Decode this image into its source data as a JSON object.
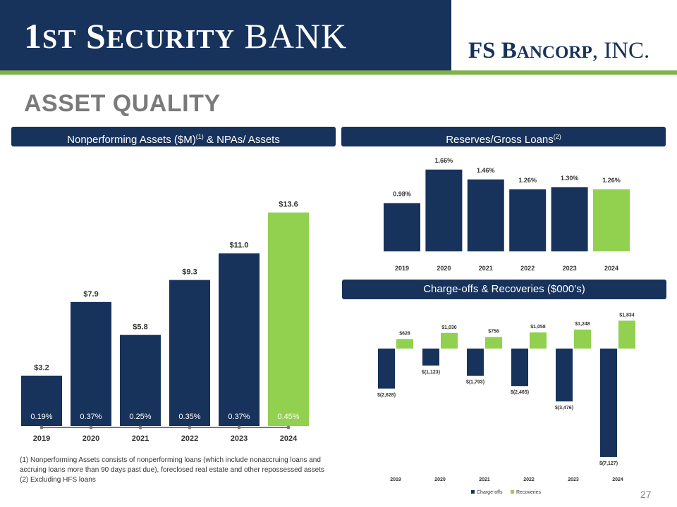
{
  "header": {
    "left_logo": {
      "big1": "1",
      "small1": "ST",
      "big2": " S",
      "small2": "ECURITY",
      "rest": " BANK"
    },
    "right_logo": {
      "big1": "FS B",
      "small1": "ANCORP",
      "rest": ", INC."
    }
  },
  "title": "ASSET QUALITY",
  "panels": {
    "npa": {
      "title": "Nonperforming Assets ($M)",
      "sup": "(1)",
      "title_suffix": " & NPAs/ Assets"
    },
    "reserves": {
      "title": "Reserves/Gross Loans",
      "sup": "(2)"
    },
    "chargeoffs": {
      "title": "Charge-offs & Recoveries ($000’s)"
    }
  },
  "colors": {
    "navy": "#17325b",
    "green": "#92d050",
    "gray_title": "#7a7a7a"
  },
  "chart_data": [
    {
      "type": "bar",
      "categories": [
        "2019",
        "2020",
        "2021",
        "2022",
        "2023",
        "2024"
      ],
      "values": [
        3.2,
        7.9,
        5.8,
        9.3,
        11.0,
        13.6
      ],
      "value_labels": [
        "$3.2",
        "$7.9",
        "$5.8",
        "$9.3",
        "$11.0",
        "$13.6"
      ],
      "ratio_labels": [
        "0.19%",
        "0.37%",
        "0.25%",
        "0.35%",
        "0.37%",
        "0.45%"
      ],
      "ratios": [
        0.19,
        0.37,
        0.25,
        0.35,
        0.37,
        0.45
      ],
      "highlight_index": 5
    },
    {
      "type": "bar",
      "categories": [
        "2019",
        "2020",
        "2021",
        "2022",
        "2023",
        "2024"
      ],
      "values": [
        0.98,
        1.66,
        1.46,
        1.26,
        1.3,
        1.26
      ],
      "value_labels": [
        "0.98%",
        "1.66%",
        "1.46%",
        "1.26%",
        "1.30%",
        "1.26%"
      ],
      "highlight_index": 5
    },
    {
      "type": "bar",
      "categories": [
        "2019",
        "2020",
        "2021",
        "2022",
        "2023",
        "2024"
      ],
      "series": [
        {
          "name": "Charge-offs",
          "values": [
            -2628,
            -1123,
            -1793,
            -2465,
            -3476,
            -7127
          ],
          "labels": [
            "$(2,628)",
            "$(1,123)",
            "$(1,793)",
            "$(2,465)",
            "$(3,476)",
            "$(7,127)"
          ]
        },
        {
          "name": "Recoveries",
          "values": [
            628,
            1030,
            756,
            1058,
            1248,
            1834
          ],
          "labels": [
            "$628",
            "$1,030",
            "$756",
            "$1,058",
            "$1,248",
            "$1,834"
          ]
        }
      ]
    }
  ],
  "footnotes": [
    "(1) Nonperforming Assets consists of nonperforming loans (which include nonaccruing loans and accruing loans more than 90 days past due), foreclosed real estate and other repossessed assets",
    "(2) Excluding HFS loans"
  ],
  "page_number": "27"
}
